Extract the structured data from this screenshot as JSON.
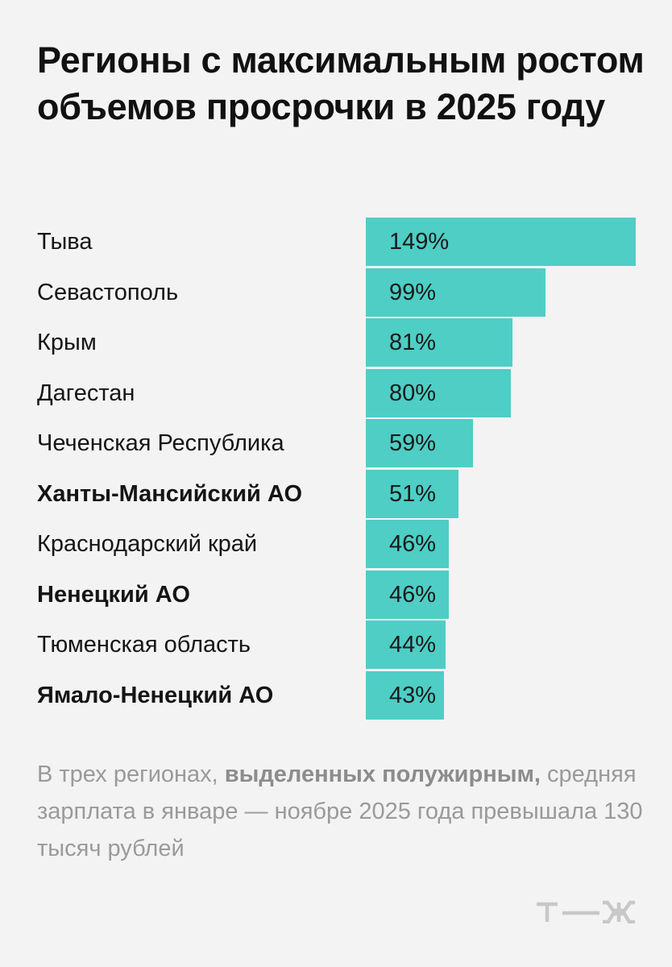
{
  "title": "Регионы с максимальным ростом объемов просрочки в 2025 году",
  "chart_data": {
    "type": "bar",
    "orientation": "horizontal",
    "categories": [
      "Тыва",
      "Севастополь",
      "Крым",
      "Дагестан",
      "Чеченская Республика",
      "Ханты-Мансийский АО",
      "Краснодарский край",
      "Ненецкий АО",
      "Тюменская область",
      "Ямало-Ненецкий АО"
    ],
    "values": [
      149,
      99,
      81,
      80,
      59,
      51,
      46,
      46,
      44,
      43
    ],
    "value_labels": [
      "149%",
      "99%",
      "81%",
      "80%",
      "59%",
      "51%",
      "46%",
      "46%",
      "44%",
      "43%"
    ],
    "bold": [
      false,
      false,
      false,
      false,
      false,
      true,
      false,
      true,
      false,
      true
    ],
    "bar_color": "#4ecec5",
    "xlim": [
      0,
      149
    ]
  },
  "note": {
    "before": "В трех регионах, ",
    "highlight": "выделенных полужирным,",
    "after": " средняя зарплата в январе — ноябре 2025 года превышала 130 тысяч рублей"
  },
  "colors": {
    "background": "#f3f3f3",
    "text": "#111111",
    "note": "#9a9a9a",
    "logo": "#c8c8c8"
  },
  "logo": {
    "name": "tzh-logo",
    "color": "#c8c8c8"
  }
}
